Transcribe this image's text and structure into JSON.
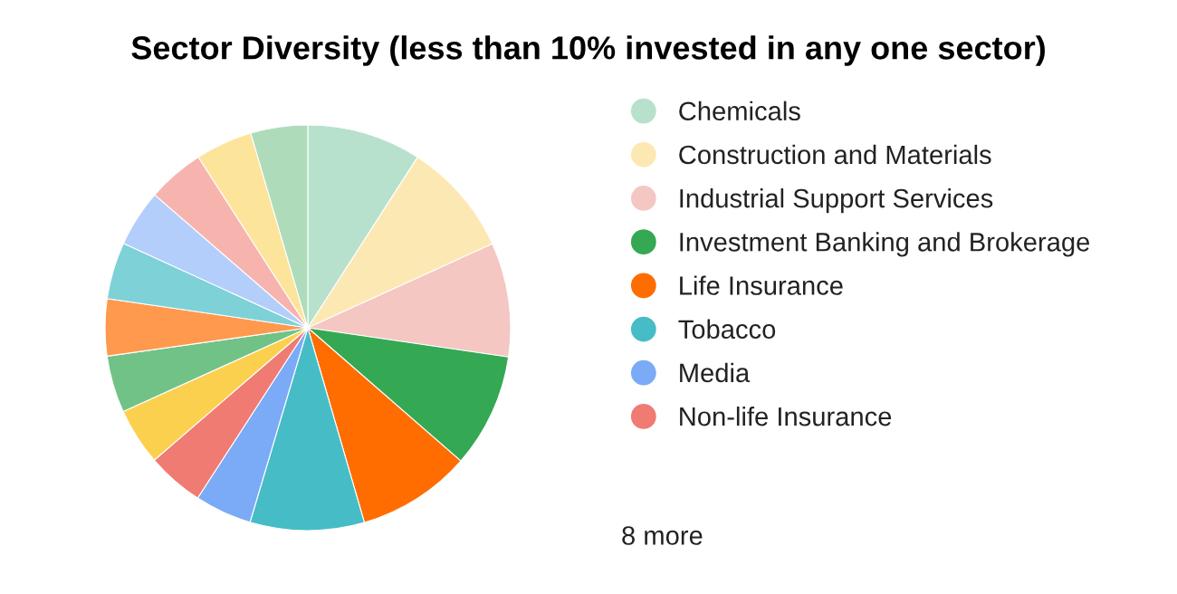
{
  "chart_data": {
    "type": "pie",
    "title": "Sector Diversity (less than 10% invested in any one sector)",
    "categories": [
      "Chemicals",
      "Construction and Materials",
      "Industrial Support Services",
      "Investment Banking and Brokerage",
      "Life Insurance",
      "Tobacco",
      "Media",
      "Non-life Insurance",
      null,
      null,
      null,
      null,
      null,
      null,
      null,
      null
    ],
    "values": [
      9.1,
      9.1,
      9.1,
      9.1,
      9.1,
      9.1,
      4.54,
      4.54,
      4.54,
      4.54,
      4.54,
      4.54,
      4.54,
      4.54,
      4.54,
      4.54
    ],
    "colors": [
      "#b7e1cd",
      "#fce8b2",
      "#f4c7c3",
      "#34a853",
      "#ff6d00",
      "#46bdc6",
      "#7baaf7",
      "#f07b72",
      "#fcd04f",
      "#71c287",
      "#ff994d",
      "#7ed1d7",
      "#b3cefb",
      "#f7b4ae",
      "#fde49b",
      "#aedcba"
    ],
    "legend": "right",
    "annotations": [
      "8 more"
    ]
  }
}
